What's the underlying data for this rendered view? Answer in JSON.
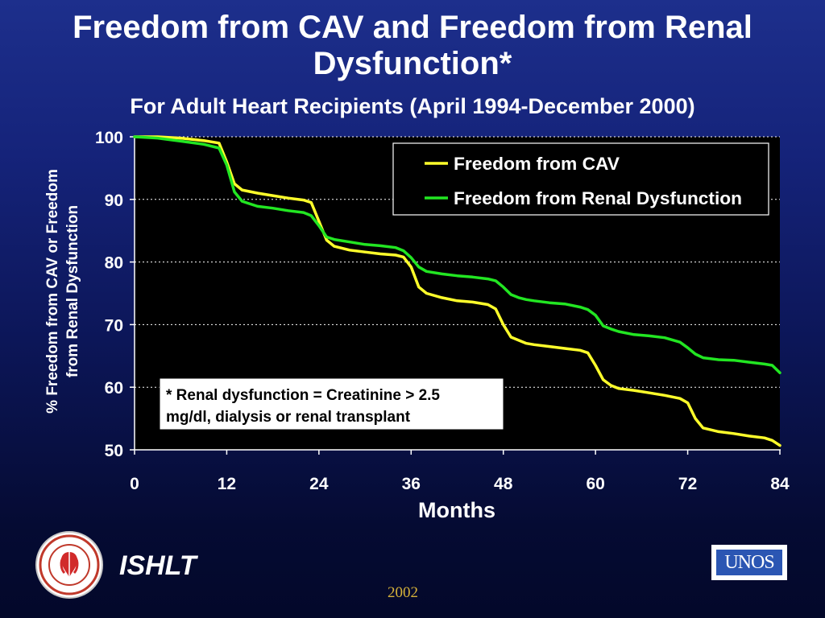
{
  "slide": {
    "title_line1": "Freedom from CAV and Freedom from Renal",
    "title_line2": "Dysfunction*",
    "subtitle": "For Adult Heart Recipients (April 1994-December 2000)",
    "footer_org": "ISHLT",
    "footer_year": "2002",
    "logo_right_text": "UNOS",
    "seal_text": "INTERNATIONAL SOCIETY FOR HEART & LUNG TRANSPLANTATION"
  },
  "colors": {
    "cav": "#ffff2b",
    "renal": "#22e622",
    "axis": "#ffffff",
    "grid": "#ffffff"
  },
  "chart_data": {
    "type": "line",
    "xlabel": "Months",
    "ylabel_line1": "% Freedom from CAV or Freedom",
    "ylabel_line2": "from Renal Dysfunction",
    "xlim": [
      0,
      84
    ],
    "ylim": [
      50,
      100
    ],
    "xticks": [
      0,
      12,
      24,
      36,
      48,
      60,
      72,
      84
    ],
    "yticks": [
      50,
      60,
      70,
      80,
      90,
      100
    ],
    "grid": "horizontal dotted",
    "legend_position": "top-right",
    "annotation_line1": "* Renal dysfunction = Creatinine > 2.5",
    "annotation_line2": "mg/dl, dialysis or renal transplant",
    "series": [
      {
        "name": "Freedom from CAV",
        "x": [
          0,
          3,
          6,
          9,
          11,
          12,
          13,
          14,
          16,
          18,
          20,
          22,
          23,
          24,
          25,
          26,
          28,
          30,
          32,
          34,
          35,
          36,
          37,
          38,
          40,
          42,
          44,
          46,
          47,
          48,
          49,
          50,
          51,
          52,
          54,
          56,
          58,
          59,
          60,
          61,
          62,
          63,
          65,
          67,
          69,
          71,
          72,
          73,
          74,
          76,
          78,
          80,
          82,
          83,
          84
        ],
        "y": [
          100,
          100,
          99.8,
          99.4,
          99.0,
          96,
          92.5,
          91.5,
          91.0,
          90.6,
          90.2,
          89.9,
          89.5,
          86.5,
          83.5,
          82.5,
          81.9,
          81.6,
          81.3,
          81.1,
          80.8,
          79.2,
          76.0,
          75.0,
          74.3,
          73.8,
          73.6,
          73.2,
          72.5,
          70.0,
          68.0,
          67.5,
          67.0,
          66.8,
          66.5,
          66.2,
          65.9,
          65.5,
          63.5,
          61.2,
          60.3,
          59.8,
          59.5,
          59.1,
          58.7,
          58.2,
          57.5,
          55.0,
          53.5,
          52.9,
          52.6,
          52.2,
          51.9,
          51.5,
          50.7
        ]
      },
      {
        "name": "Freedom from Renal Dysfunction",
        "x": [
          0,
          3,
          6,
          9,
          11,
          12,
          13,
          14,
          16,
          18,
          20,
          22,
          23,
          24,
          25,
          26,
          28,
          30,
          32,
          34,
          35,
          36,
          37,
          38,
          40,
          42,
          44,
          46,
          47,
          48,
          49,
          50,
          51,
          52,
          54,
          56,
          58,
          59,
          60,
          61,
          62,
          63,
          65,
          67,
          69,
          71,
          72,
          73,
          74,
          76,
          78,
          80,
          82,
          83,
          84
        ],
        "y": [
          100,
          99.8,
          99.3,
          98.8,
          98.2,
          95.5,
          91.2,
          89.7,
          88.9,
          88.6,
          88.2,
          87.9,
          87.4,
          85.8,
          84.0,
          83.6,
          83.2,
          82.8,
          82.6,
          82.3,
          81.8,
          80.7,
          79.2,
          78.5,
          78.1,
          77.8,
          77.6,
          77.3,
          77.0,
          76.0,
          74.8,
          74.3,
          74.0,
          73.8,
          73.5,
          73.3,
          72.8,
          72.4,
          71.5,
          69.8,
          69.3,
          68.9,
          68.4,
          68.2,
          67.9,
          67.2,
          66.3,
          65.3,
          64.7,
          64.4,
          64.3,
          64.0,
          63.7,
          63.5,
          62.3
        ]
      }
    ]
  }
}
